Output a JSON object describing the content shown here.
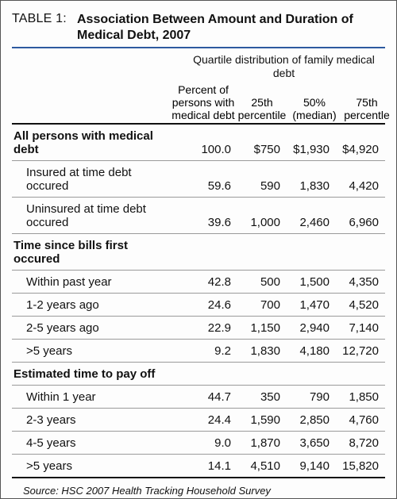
{
  "colors": {
    "rule_blue": "#2d5aa0",
    "row_rule": "#9a9a9a",
    "heavy_rule": "#111111",
    "text": "#111111",
    "background": "#fdfdfd"
  },
  "table_label": "TABLE 1:",
  "title": "Association Between Amount and Duration of Medical Debt, 2007",
  "super_header": "Quartile distribution of family medical debt",
  "col_headers": {
    "pct": "Percent of persons with medical debt",
    "p25": "25th percentile",
    "p50": "50% (median)",
    "p75": "75th percentle"
  },
  "rows": [
    {
      "type": "section",
      "label": "All persons with medical debt",
      "pct": "100.0",
      "p25": "$750",
      "p50": "$1,930",
      "p75": "$4,920"
    },
    {
      "type": "indent",
      "label": "Insured at time debt occured",
      "pct": "59.6",
      "p25": "590",
      "p50": "1,830",
      "p75": "4,420"
    },
    {
      "type": "indent",
      "label": "Uninsured at time debt occured",
      "pct": "39.6",
      "p25": "1,000",
      "p50": "2,460",
      "p75": "6,960"
    },
    {
      "type": "section",
      "label": "Time since bills first occured",
      "pct": "",
      "p25": "",
      "p50": "",
      "p75": ""
    },
    {
      "type": "indent",
      "label": "Within past year",
      "pct": "42.8",
      "p25": "500",
      "p50": "1,500",
      "p75": "4,350"
    },
    {
      "type": "indent",
      "label": "1-2 years ago",
      "pct": "24.6",
      "p25": "700",
      "p50": "1,470",
      "p75": "4,520"
    },
    {
      "type": "indent",
      "label": "2-5 years ago",
      "pct": "22.9",
      "p25": "1,150",
      "p50": "2,940",
      "p75": "7,140"
    },
    {
      "type": "indent",
      "label": ">5 years",
      "pct": "9.2",
      "p25": "1,830",
      "p50": "4,180",
      "p75": "12,720"
    },
    {
      "type": "section",
      "label": "Estimated time to pay off",
      "pct": "",
      "p25": "",
      "p50": "",
      "p75": ""
    },
    {
      "type": "indent",
      "label": "Within 1 year",
      "pct": "44.7",
      "p25": "350",
      "p50": "790",
      "p75": "1,850"
    },
    {
      "type": "indent",
      "label": "2-3 years",
      "pct": "24.4",
      "p25": "1,590",
      "p50": "2,850",
      "p75": "4,760"
    },
    {
      "type": "indent",
      "label": "4-5 years",
      "pct": "9.0",
      "p25": "1,870",
      "p50": "3,650",
      "p75": "8,720"
    },
    {
      "type": "indent",
      "label": ">5 years",
      "pct": "14.1",
      "p25": "4,510",
      "p50": "9,140",
      "p75": "15,820",
      "last": true
    }
  ],
  "source": "Source: HSC 2007 Health Tracking Household Survey"
}
